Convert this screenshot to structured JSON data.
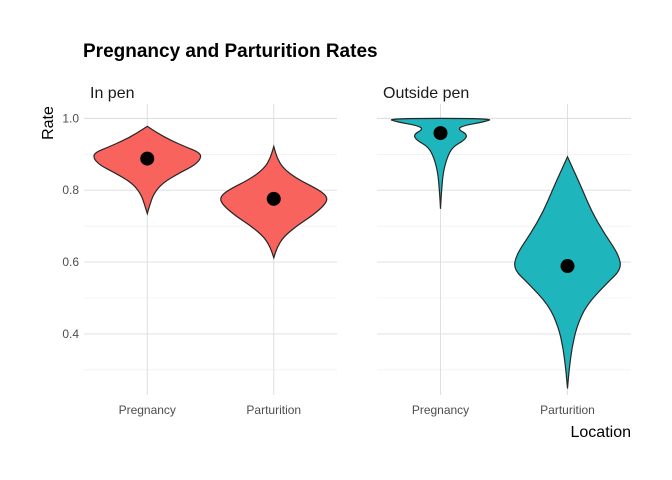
{
  "chart_data": {
    "type": "violin",
    "title": "Pregnancy and Parturition Rates",
    "xlabel": "Location",
    "ylabel": "Rate",
    "ylim": [
      0.23,
      1.04
    ],
    "yticks": [
      0.4,
      0.6,
      0.8,
      1.0
    ],
    "ytick_labels": [
      "0.4",
      "0.6",
      "0.8",
      "1.0"
    ],
    "categories": [
      "Pregnancy",
      "Parturition"
    ],
    "grid": true,
    "legend": "none",
    "panels": [
      {
        "name": "In pen",
        "fill": "#f8635e",
        "violins": [
          {
            "category": "Pregnancy",
            "point": 0.888,
            "range": [
              0.735,
              0.978
            ],
            "profile": [
              [
                0.735,
                0.0
              ],
              [
                0.76,
                0.05
              ],
              [
                0.79,
                0.12
              ],
              [
                0.82,
                0.28
              ],
              [
                0.85,
                0.62
              ],
              [
                0.87,
                0.88
              ],
              [
                0.89,
                1.0
              ],
              [
                0.905,
                0.97
              ],
              [
                0.92,
                0.72
              ],
              [
                0.94,
                0.42
              ],
              [
                0.96,
                0.18
              ],
              [
                0.978,
                0.0
              ]
            ]
          },
          {
            "category": "Parturition",
            "point": 0.776,
            "range": [
              0.612,
              0.922
            ],
            "profile": [
              [
                0.612,
                0.0
              ],
              [
                0.64,
                0.06
              ],
              [
                0.67,
                0.18
              ],
              [
                0.7,
                0.42
              ],
              [
                0.73,
                0.72
              ],
              [
                0.76,
                0.95
              ],
              [
                0.78,
                1.0
              ],
              [
                0.8,
                0.85
              ],
              [
                0.83,
                0.45
              ],
              [
                0.86,
                0.18
              ],
              [
                0.89,
                0.06
              ],
              [
                0.922,
                0.0
              ]
            ]
          }
        ]
      },
      {
        "name": "Outside pen",
        "fill": "#1eb5bc",
        "violins": [
          {
            "category": "Pregnancy",
            "point": 0.959,
            "range": [
              0.748,
              1.0
            ],
            "profile": [
              [
                0.748,
                0.0
              ],
              [
                0.8,
                0.02
              ],
              [
                0.85,
                0.05
              ],
              [
                0.89,
                0.12
              ],
              [
                0.92,
                0.22
              ],
              [
                0.94,
                0.45
              ],
              [
                0.955,
                0.5
              ],
              [
                0.97,
                0.32
              ],
              [
                0.98,
                0.42
              ],
              [
                0.99,
                0.8
              ],
              [
                1.0,
                1.0
              ]
            ]
          },
          {
            "category": "Parturition",
            "point": 0.589,
            "range": [
              0.248,
              0.893
            ],
            "profile": [
              [
                0.248,
                0.0
              ],
              [
                0.3,
                0.03
              ],
              [
                0.36,
                0.08
              ],
              [
                0.42,
                0.17
              ],
              [
                0.48,
                0.35
              ],
              [
                0.54,
                0.72
              ],
              [
                0.58,
                1.0
              ],
              [
                0.62,
                0.95
              ],
              [
                0.68,
                0.68
              ],
              [
                0.74,
                0.45
              ],
              [
                0.8,
                0.28
              ],
              [
                0.86,
                0.1
              ],
              [
                0.893,
                0.0
              ]
            ]
          }
        ]
      }
    ]
  }
}
